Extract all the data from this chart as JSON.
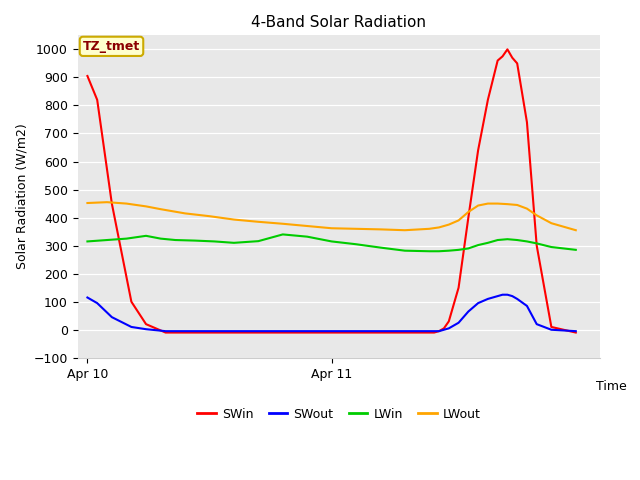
{
  "title": "4-Band Solar Radiation",
  "ylabel": "Solar Radiation (W/m2)",
  "xlabel": "Time",
  "annotation": "TZ_tmet",
  "ylim": [
    -100,
    1050
  ],
  "xlim": [
    0,
    2.0
  ],
  "plot_bg_color": "#e8e8e8",
  "legend_entries": [
    "SWin",
    "SWout",
    "LWin",
    "LWout"
  ],
  "legend_colors": [
    "#ff0000",
    "#0000ff",
    "#00cc00",
    "#ffa500"
  ],
  "xtick_labels": [
    "Apr 10",
    "Apr 11"
  ],
  "xtick_positions": [
    0.0,
    1.0
  ],
  "SWin": {
    "color": "#ff0000",
    "x": [
      0.0,
      0.02,
      0.05,
      0.09,
      0.12,
      0.16,
      0.2,
      0.25,
      0.3,
      0.35,
      0.4,
      0.45,
      0.5,
      0.55,
      0.6,
      0.65,
      0.7,
      0.71,
      0.72,
      0.73,
      0.74,
      0.76,
      0.78,
      0.8,
      0.82,
      0.84,
      0.85,
      0.86,
      0.87,
      0.88,
      0.9,
      0.92,
      0.95,
      1.0
    ],
    "y": [
      905,
      820,
      450,
      100,
      20,
      -10,
      -10,
      -10,
      -10,
      -10,
      -10,
      -10,
      -10,
      -10,
      -10,
      -10,
      -10,
      -10,
      -5,
      5,
      30,
      150,
      400,
      640,
      820,
      960,
      975,
      1000,
      970,
      950,
      740,
      300,
      10,
      -10
    ]
  },
  "SWout": {
    "color": "#0000ff",
    "x": [
      0.0,
      0.02,
      0.05,
      0.09,
      0.12,
      0.16,
      0.2,
      0.25,
      0.3,
      0.35,
      0.4,
      0.45,
      0.5,
      0.55,
      0.6,
      0.65,
      0.7,
      0.71,
      0.72,
      0.74,
      0.76,
      0.78,
      0.8,
      0.82,
      0.84,
      0.85,
      0.86,
      0.87,
      0.88,
      0.9,
      0.92,
      0.95,
      1.0
    ],
    "y": [
      115,
      95,
      45,
      10,
      2,
      -5,
      -5,
      -5,
      -5,
      -5,
      -5,
      -5,
      -5,
      -5,
      -5,
      -5,
      -5,
      -5,
      -5,
      5,
      25,
      65,
      95,
      110,
      120,
      125,
      125,
      120,
      110,
      85,
      20,
      0,
      -5
    ]
  },
  "LWin": {
    "color": "#00cc00",
    "x": [
      0.0,
      0.04,
      0.08,
      0.1,
      0.12,
      0.15,
      0.18,
      0.22,
      0.26,
      0.3,
      0.35,
      0.4,
      0.45,
      0.5,
      0.55,
      0.6,
      0.65,
      0.7,
      0.72,
      0.74,
      0.76,
      0.78,
      0.8,
      0.82,
      0.84,
      0.86,
      0.88,
      0.9,
      0.92,
      0.95,
      1.0
    ],
    "y": [
      315,
      320,
      325,
      330,
      335,
      325,
      320,
      318,
      315,
      310,
      316,
      340,
      332,
      315,
      305,
      293,
      282,
      280,
      280,
      282,
      285,
      290,
      302,
      310,
      320,
      323,
      320,
      315,
      308,
      295,
      285
    ]
  },
  "LWout": {
    "color": "#ffa500",
    "x": [
      0.0,
      0.04,
      0.08,
      0.1,
      0.12,
      0.15,
      0.2,
      0.25,
      0.3,
      0.35,
      0.4,
      0.45,
      0.5,
      0.55,
      0.6,
      0.65,
      0.7,
      0.72,
      0.74,
      0.76,
      0.78,
      0.8,
      0.82,
      0.84,
      0.86,
      0.88,
      0.9,
      0.92,
      0.95,
      1.0
    ],
    "y": [
      452,
      455,
      450,
      445,
      440,
      430,
      415,
      405,
      393,
      385,
      378,
      370,
      362,
      360,
      358,
      355,
      360,
      365,
      375,
      390,
      420,
      443,
      450,
      450,
      448,
      445,
      432,
      408,
      380,
      355
    ]
  }
}
